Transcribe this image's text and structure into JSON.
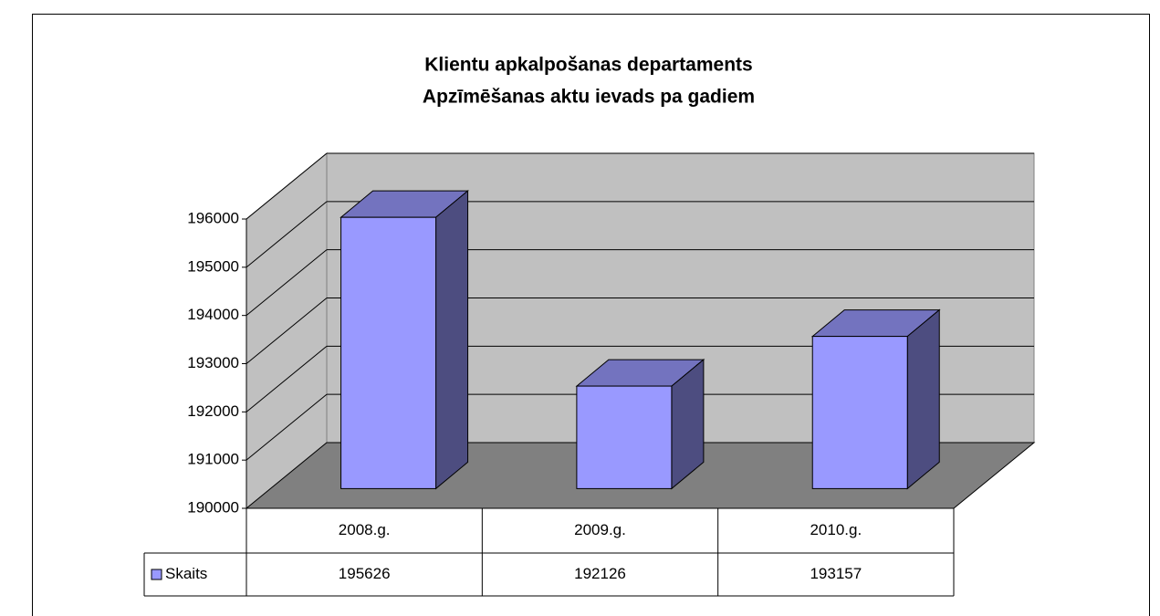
{
  "chart_data": {
    "type": "bar3d",
    "title": "Klientu apkalpošanas departaments",
    "subtitle": "Apzīmēšanas aktu ievads pa gadiem",
    "categories": [
      "2008.g.",
      "2009.g.",
      "2010.g."
    ],
    "series": [
      {
        "name": "Skaits",
        "color": "#9999ff",
        "values": [
          195626,
          192126,
          193157
        ]
      }
    ],
    "ylim": [
      190000,
      196000
    ],
    "yticks": [
      190000,
      191000,
      192000,
      193000,
      194000,
      195000,
      196000
    ],
    "grid": true,
    "data_table": true
  }
}
